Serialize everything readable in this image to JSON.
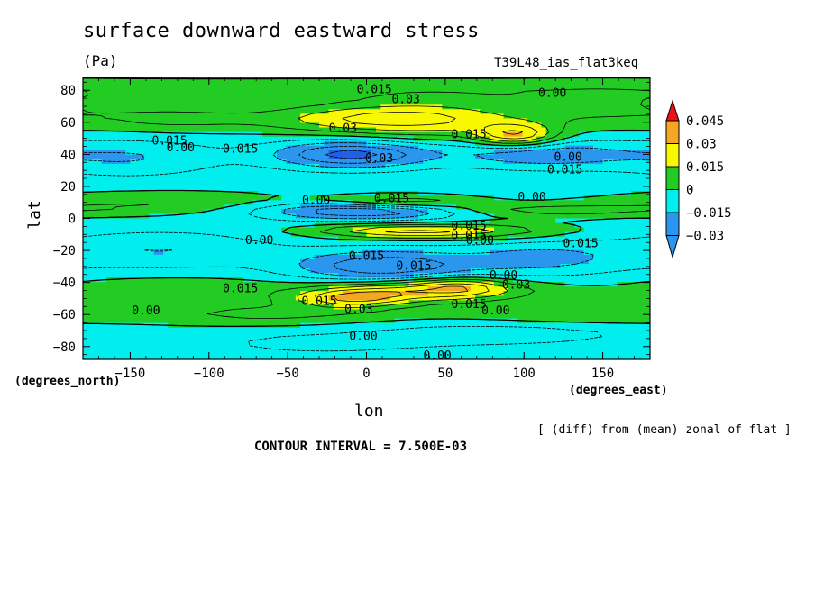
{
  "chart_data": {
    "type": "heatmap",
    "title": "surface downward eastward stress",
    "units": "(Pa)",
    "run_label": "T39L48_ias_flat3keq",
    "xlabel": "lon",
    "ylabel": "lat",
    "x_units": "(degrees_east)",
    "y_units": "(degrees_north)",
    "xlim": [
      -180,
      180
    ],
    "ylim": [
      -88,
      88
    ],
    "x_ticks": [
      -150,
      -100,
      -50,
      0,
      50,
      100,
      150
    ],
    "y_ticks": [
      80,
      60,
      40,
      20,
      0,
      -20,
      -40,
      -60,
      -80
    ],
    "tick_labels_x": [
      "−150",
      "−100",
      "−50",
      "0",
      "50",
      "100",
      "150"
    ],
    "tick_labels_y": [
      "80",
      "60",
      "40",
      "20",
      "0",
      "−20",
      "−40",
      "−60",
      "−80"
    ],
    "levels": [
      -0.03,
      -0.015,
      0,
      0.015,
      0.03,
      0.045
    ],
    "legend_labels": [
      "0.045",
      "0.03",
      "0.015",
      "0",
      "−0.015",
      "−0.03"
    ],
    "legend_colors": [
      "#ee1111",
      "#f5a623",
      "#f8f800",
      "#22cc22",
      "#00eeee",
      "#2a96ee"
    ],
    "band_colors": {
      "below_-0.03": "#2060e8",
      "-0.03_-0.015": "#2a96ee",
      "-0.015_0": "#00eeee",
      "0_0.015": "#22cc22",
      "0.015_0.03": "#f8f800",
      "0.03_0.045": "#f5a623",
      "above_0.045": "#ee1111"
    },
    "contour_labels": [
      {
        "text": "0.015",
        "lon": 5,
        "lat": 80
      },
      {
        "text": "0.03",
        "lon": 25,
        "lat": 74
      },
      {
        "text": "0.00",
        "lon": 118,
        "lat": 78
      },
      {
        "text": "0.03",
        "lon": -15,
        "lat": 56
      },
      {
        "text": "0.015",
        "lon": 65,
        "lat": 52
      },
      {
        "text": "0.015",
        "lon": -125,
        "lat": 48
      },
      {
        "text": "0.00",
        "lon": -118,
        "lat": 44
      },
      {
        "text": "0.015",
        "lon": -80,
        "lat": 43
      },
      {
        "text": "0.03",
        "lon": 8,
        "lat": 37
      },
      {
        "text": "0.00",
        "lon": 128,
        "lat": 38
      },
      {
        "text": "0.015",
        "lon": 126,
        "lat": 30
      },
      {
        "text": "0.00",
        "lon": -32,
        "lat": 11
      },
      {
        "text": "0.015",
        "lon": 16,
        "lat": 12
      },
      {
        "text": "0.00",
        "lon": 105,
        "lat": 13
      },
      {
        "text": "0.015",
        "lon": 65,
        "lat": -5
      },
      {
        "text": "0.015",
        "lon": 65,
        "lat": -11
      },
      {
        "text": "0.00",
        "lon": 72,
        "lat": -14
      },
      {
        "text": "0.015",
        "lon": 136,
        "lat": -16
      },
      {
        "text": "0.00",
        "lon": -68,
        "lat": -14
      },
      {
        "text": "0.015",
        "lon": 0,
        "lat": -24
      },
      {
        "text": "0.015",
        "lon": 30,
        "lat": -30
      },
      {
        "text": "0.00",
        "lon": 87,
        "lat": -36
      },
      {
        "text": "0.03",
        "lon": 95,
        "lat": -42
      },
      {
        "text": "0.015",
        "lon": -80,
        "lat": -44
      },
      {
        "text": "0.015",
        "lon": -30,
        "lat": -52
      },
      {
        "text": "0.03",
        "lon": -5,
        "lat": -57
      },
      {
        "text": "0.015",
        "lon": 65,
        "lat": -54
      },
      {
        "text": "0.00",
        "lon": 82,
        "lat": -58
      },
      {
        "text": "0.00",
        "lon": -140,
        "lat": -58
      },
      {
        "text": "0.00",
        "lon": -2,
        "lat": -74
      },
      {
        "text": "0.00",
        "lon": 45,
        "lat": -86
      }
    ]
  },
  "footer": {
    "note": "[ (diff) from (mean) zonal of flat ]",
    "contour_interval": "CONTOUR INTERVAL = 7.500E-03"
  }
}
